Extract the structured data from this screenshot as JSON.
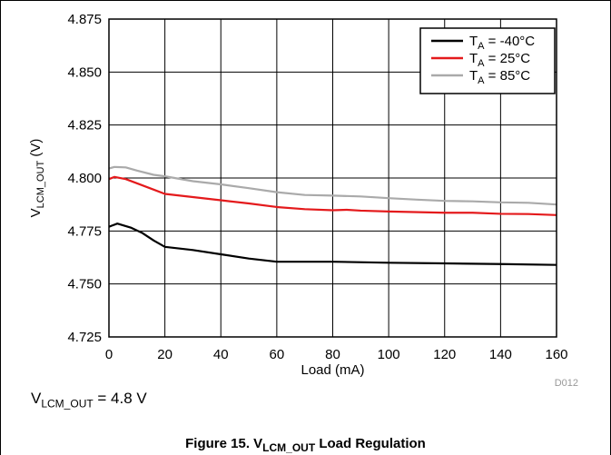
{
  "chart_data": {
    "type": "line",
    "xlabel": "Load (mA)",
    "ylabel": {
      "main": "V",
      "sub": "LCM_OUT",
      "suffix": " (V)"
    },
    "xlim": [
      0,
      160
    ],
    "ylim": [
      4.725,
      4.875
    ],
    "x_ticks": [
      "0",
      "20",
      "40",
      "60",
      "80",
      "100",
      "120",
      "140",
      "160"
    ],
    "y_ticks": [
      "4.725",
      "4.750",
      "4.775",
      "4.800",
      "4.825",
      "4.850",
      "4.875"
    ],
    "grid": true,
    "legend_position": "top-right",
    "series": [
      {
        "name": "TA = -40°C",
        "label_parts": {
          "main": "T",
          "sub": "A",
          "rest": " = -40°C"
        },
        "color": "#000000",
        "points": [
          [
            0,
            4.777
          ],
          [
            1,
            4.7775
          ],
          [
            3,
            4.7785
          ],
          [
            8,
            4.7765
          ],
          [
            12,
            4.774
          ],
          [
            16,
            4.7705
          ],
          [
            20,
            4.7675
          ],
          [
            30,
            4.766
          ],
          [
            40,
            4.764
          ],
          [
            50,
            4.762
          ],
          [
            60,
            4.7605
          ],
          [
            80,
            4.7605
          ],
          [
            100,
            4.76
          ],
          [
            120,
            4.7597
          ],
          [
            140,
            4.7594
          ],
          [
            160,
            4.759
          ]
        ]
      },
      {
        "name": "TA = 25°C",
        "label_parts": {
          "main": "T",
          "sub": "A",
          "rest": " = 25°C"
        },
        "color": "#e41a1c",
        "points": [
          [
            0,
            4.7995
          ],
          [
            2,
            4.8005
          ],
          [
            6,
            4.7995
          ],
          [
            10,
            4.7975
          ],
          [
            16,
            4.7945
          ],
          [
            20,
            4.7925
          ],
          [
            30,
            4.791
          ],
          [
            40,
            4.7895
          ],
          [
            50,
            4.788
          ],
          [
            60,
            4.7863
          ],
          [
            70,
            4.7853
          ],
          [
            80,
            4.7848
          ],
          [
            85,
            4.785
          ],
          [
            90,
            4.7846
          ],
          [
            100,
            4.7842
          ],
          [
            120,
            4.7836
          ],
          [
            130,
            4.7836
          ],
          [
            140,
            4.7831
          ],
          [
            150,
            4.783
          ],
          [
            160,
            4.7825
          ]
        ]
      },
      {
        "name": "TA = 85°C",
        "label_parts": {
          "main": "T",
          "sub": "A",
          "rest": " = 85°C"
        },
        "color": "#aaaaaa",
        "points": [
          [
            0,
            4.8045
          ],
          [
            2,
            4.8052
          ],
          [
            6,
            4.805
          ],
          [
            10,
            4.8035
          ],
          [
            16,
            4.8015
          ],
          [
            20,
            4.8008
          ],
          [
            30,
            4.7985
          ],
          [
            40,
            4.797
          ],
          [
            50,
            4.7952
          ],
          [
            60,
            4.7933
          ],
          [
            70,
            4.792
          ],
          [
            80,
            4.7917
          ],
          [
            90,
            4.7913
          ],
          [
            100,
            4.7905
          ],
          [
            110,
            4.7898
          ],
          [
            120,
            4.7892
          ],
          [
            130,
            4.789
          ],
          [
            140,
            4.7885
          ],
          [
            150,
            4.7883
          ],
          [
            160,
            4.7875
          ]
        ]
      }
    ],
    "annotation": "D012"
  },
  "note": {
    "main": "V",
    "sub": "LCM_OUT",
    "rest": " = 4.8 V"
  },
  "caption": {
    "main": "Figure 15. V",
    "sub": "LCM_OUT",
    "rest": " Load Regulation"
  }
}
